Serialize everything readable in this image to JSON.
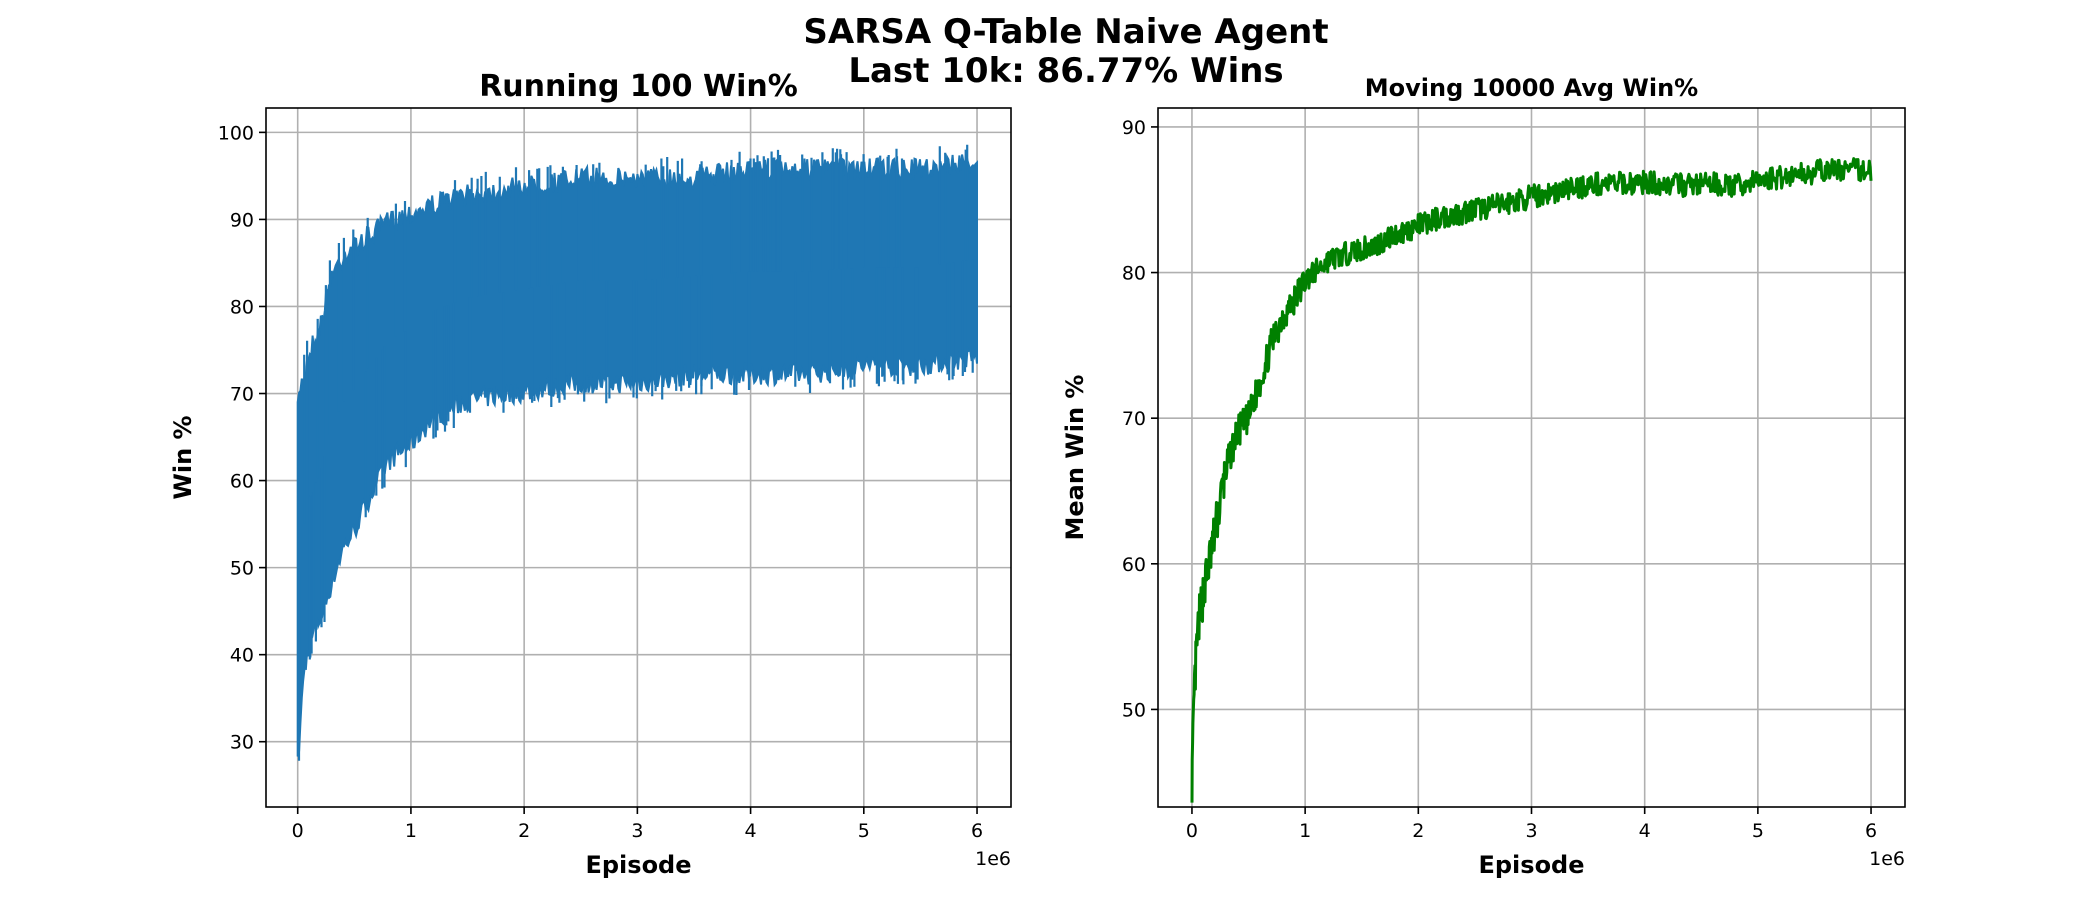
{
  "figure": {
    "title_line1": "SARSA Q-Table Naive Agent",
    "title_line2": "Last 10k: 86.77% Wins"
  },
  "chart_data": [
    {
      "type": "line",
      "title": "Running 100 Win%",
      "xlabel": "Episode",
      "ylabel": "Win %",
      "x_scale_label": "1e6",
      "xlim": [
        -0.28,
        6.3
      ],
      "ylim": [
        22.5,
        102.8
      ],
      "xticks": [
        0,
        1,
        2,
        3,
        4,
        5,
        6
      ],
      "xtick_labels": [
        "0",
        "1",
        "2",
        "3",
        "4",
        "5",
        "6"
      ],
      "yticks": [
        30,
        40,
        50,
        60,
        70,
        80,
        90,
        100
      ],
      "ytick_labels": [
        "30",
        "40",
        "50",
        "60",
        "70",
        "80",
        "90",
        "100"
      ],
      "grid": true,
      "color": "#1f77b4",
      "envelope": {
        "x": [
          0,
          0.02,
          0.05,
          0.1,
          0.2,
          0.3,
          0.4,
          0.5,
          0.6,
          0.8,
          1.0,
          1.2,
          1.5,
          2.0,
          2.5,
          3.0,
          3.5,
          4.0,
          4.5,
          5.0,
          5.5,
          6.0
        ],
        "upper": [
          69,
          72,
          73,
          76,
          79,
          85,
          87,
          88,
          89,
          91,
          92,
          93,
          94,
          95,
          96,
          96,
          96,
          97,
          97,
          97,
          97,
          98
        ],
        "lower": [
          26,
          30,
          36,
          40,
          43,
          47,
          51,
          53,
          56,
          61,
          63,
          66,
          68,
          69,
          70,
          70,
          71,
          71,
          71,
          72,
          72,
          73
        ]
      }
    },
    {
      "type": "line",
      "title": "Moving 10000 Avg Win%",
      "xlabel": "Episode",
      "ylabel": "Mean Win %",
      "x_scale_label": "1e6",
      "xlim": [
        -0.3,
        6.3
      ],
      "ylim": [
        43.3,
        91.3
      ],
      "xticks": [
        0,
        1,
        2,
        3,
        4,
        5,
        6
      ],
      "xtick_labels": [
        "0",
        "1",
        "2",
        "3",
        "4",
        "5",
        "6"
      ],
      "yticks": [
        50,
        60,
        70,
        80,
        90
      ],
      "ytick_labels": [
        "50",
        "60",
        "70",
        "80",
        "90"
      ],
      "grid": true,
      "color": "#008000",
      "series": [
        {
          "x": [
            0,
            0.01,
            0.02,
            0.04,
            0.06,
            0.1,
            0.15,
            0.2,
            0.3,
            0.4,
            0.5,
            0.6,
            0.7,
            0.8,
            0.9,
            1.0,
            1.2,
            1.4,
            1.6,
            1.8,
            2.0,
            2.2,
            2.5,
            2.8,
            3.0,
            3.3,
            3.6,
            3.8,
            4.0,
            4.3,
            4.6,
            4.8,
            5.0,
            5.3,
            5.6,
            5.8,
            6.0
          ],
          "y": [
            45.2,
            48,
            51,
            54,
            56,
            58,
            60,
            62,
            66.5,
            69,
            70,
            72.5,
            75,
            77,
            78,
            79.5,
            80.8,
            81.4,
            81.8,
            82.6,
            83.2,
            83.8,
            84.3,
            84.8,
            85.2,
            85.7,
            86.1,
            86.1,
            86.2,
            86.0,
            86.1,
            85.9,
            86.3,
            86.7,
            87.0,
            87.1,
            87.0
          ]
        }
      ]
    }
  ]
}
